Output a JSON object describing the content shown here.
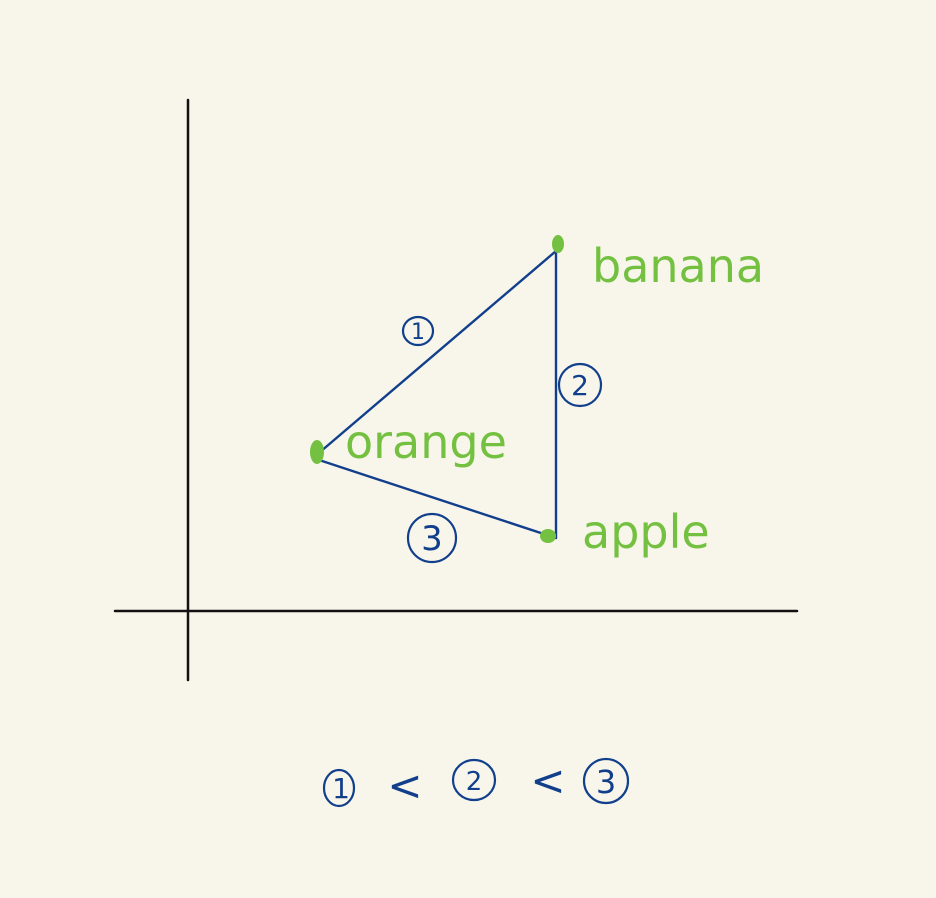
{
  "colors": {
    "background": "#f8f6eb",
    "axis": "#111111",
    "triangle": "#123f8c",
    "point": "#74c040",
    "annotation": "#123f8c"
  },
  "points": [
    {
      "id": "banana",
      "label": "banana"
    },
    {
      "id": "orange",
      "label": "orange"
    },
    {
      "id": "apple",
      "label": "apple"
    }
  ],
  "edges": [
    {
      "id": "banana-orange",
      "label": "1"
    },
    {
      "id": "banana-apple",
      "label": "2"
    },
    {
      "id": "orange-apple",
      "label": "3"
    }
  ],
  "ordering": {
    "items": [
      "1",
      "2",
      "3"
    ],
    "comparator": "<"
  }
}
